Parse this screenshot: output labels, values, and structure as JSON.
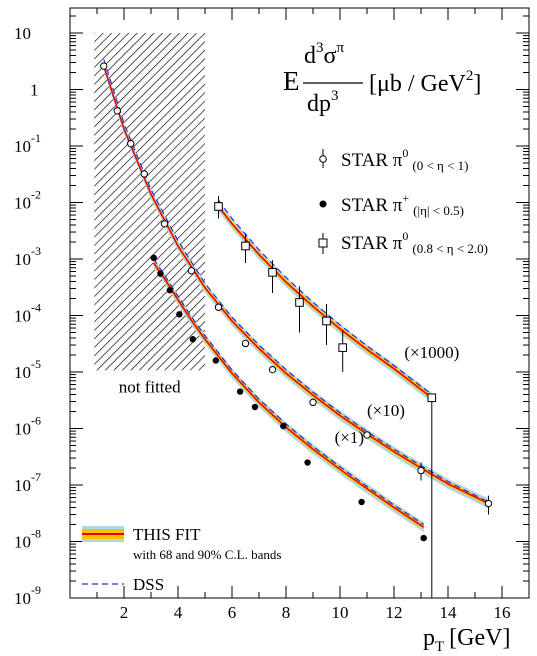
{
  "chart_data": {
    "type": "scatter",
    "xlabel": "p",
    "xlabel_sub": "T",
    "xlabel_unit": "[GeV]",
    "ylabel_formula": {
      "prefix": "E",
      "num_d": "d",
      "num_exp": "3",
      "num_sigma": "σ",
      "num_sup": "π",
      "den": "dp",
      "den_exp": "3",
      "unit": "[μb / GeV",
      "unit_exp": "2",
      "unit_close": "]"
    },
    "xlim": [
      0,
      17
    ],
    "ylog": true,
    "ylim_exp": [
      -9,
      1
    ],
    "x_ticks": [
      2,
      4,
      6,
      8,
      10,
      12,
      14,
      16
    ],
    "y_ticks": [
      {
        "exp": 1,
        "label": "10"
      },
      {
        "exp": 0,
        "label": "1"
      },
      {
        "exp": -1,
        "base": "10",
        "sup": "-1"
      },
      {
        "exp": -2,
        "base": "10",
        "sup": "-2"
      },
      {
        "exp": -3,
        "base": "10",
        "sup": "-3"
      },
      {
        "exp": -4,
        "base": "10",
        "sup": "-4"
      },
      {
        "exp": -5,
        "base": "10",
        "sup": "-5"
      },
      {
        "exp": -6,
        "base": "10",
        "sup": "-6"
      },
      {
        "exp": -7,
        "base": "10",
        "sup": "-7"
      },
      {
        "exp": -8,
        "base": "10",
        "sup": "-8"
      },
      {
        "exp": -9,
        "base": "10",
        "sup": "-9"
      }
    ],
    "not_fitted_region": {
      "x": [
        0.9,
        5.0
      ],
      "y_exp": [
        -4.97,
        1
      ]
    },
    "not_fitted_label": "not fitted",
    "colors": {
      "fit_line": "#e60000",
      "band_90": "#aad8e6",
      "band_68": "#ffc000",
      "dss": "#2a2ad8"
    },
    "series": [
      {
        "name": "STAR π⁰",
        "name_base": "STAR π",
        "name_sup": "0",
        "name_range": "(0 < η < 1)",
        "marker": "open-circle",
        "scale_label": "(×10)",
        "points": [
          {
            "x": 1.25,
            "y": 2.6
          },
          {
            "x": 1.75,
            "y": 0.42
          },
          {
            "x": 2.25,
            "y": 0.11
          },
          {
            "x": 2.75,
            "y": 0.032
          },
          {
            "x": 3.5,
            "y": 0.0042
          },
          {
            "x": 4.5,
            "y": 0.00062
          },
          {
            "x": 5.5,
            "y": 0.00014
          },
          {
            "x": 6.5,
            "y": 3.2e-05
          },
          {
            "x": 7.5,
            "y": 1.1e-05
          },
          {
            "x": 9.0,
            "y": 2.9e-06
          },
          {
            "x": 11.0,
            "y": 7.7e-07
          },
          {
            "x": 13.0,
            "y": 1.8e-07,
            "err_lo": 1.2e-07,
            "err_hi": 2.5e-07
          },
          {
            "x": 15.5,
            "y": 4.7e-08,
            "err_lo": 3e-08,
            "err_hi": 6.5e-08
          }
        ],
        "fit": {
          "x": [
            1.25,
            2,
            3,
            4,
            5,
            6,
            7,
            8,
            9,
            10,
            11,
            12,
            13,
            14,
            15.5
          ],
          "y": [
            2.6,
            0.2,
            0.014,
            0.0017,
            0.00031,
            8e-05,
            2.6e-05,
            9.5e-06,
            3.9e-06,
            1.7e-06,
            8e-07,
            3.9e-07,
            2e-07,
            1.05e-07,
            4.7e-08
          ]
        },
        "dss": {
          "x": [
            1.25,
            2,
            3,
            4,
            5,
            6,
            7,
            8,
            9,
            10,
            11,
            12,
            13,
            14,
            15.5
          ],
          "y": [
            3.4,
            0.25,
            0.017,
            0.0021,
            0.00037,
            9.3e-05,
            3e-05,
            1.1e-05,
            4.4e-06,
            1.9e-06,
            8.8e-07,
            4.3e-07,
            2.2e-07,
            1.15e-07,
            5e-08
          ]
        }
      },
      {
        "name": "STAR π⁺",
        "name_base": "STAR π",
        "name_sup": "+",
        "name_range": "(|η| < 0.5)",
        "marker": "filled-circle",
        "scale_label": "(×1)",
        "points": [
          {
            "x": 3.1,
            "y": 0.00105
          },
          {
            "x": 3.35,
            "y": 0.00055
          },
          {
            "x": 3.7,
            "y": 0.00028
          },
          {
            "x": 4.05,
            "y": 0.000105
          },
          {
            "x": 4.55,
            "y": 3.8e-05
          },
          {
            "x": 5.4,
            "y": 1.6e-05
          },
          {
            "x": 6.3,
            "y": 4.5e-06
          },
          {
            "x": 6.85,
            "y": 2.4e-06
          },
          {
            "x": 7.9,
            "y": 1.1e-06
          },
          {
            "x": 8.8,
            "y": 2.5e-07
          },
          {
            "x": 10.8,
            "y": 5e-08
          },
          {
            "x": 13.1,
            "y": 1.15e-08
          }
        ],
        "fit": {
          "x": [
            3.1,
            3.5,
            4,
            4.5,
            5,
            6,
            7,
            8,
            9,
            10,
            11,
            12,
            13.1
          ],
          "y": [
            0.00085,
            0.00045,
            0.00019,
            8.2e-05,
            3.8e-05,
            9.5e-06,
            2.9e-06,
            1.05e-06,
            4.3e-07,
            1.9e-07,
            8.6e-08,
            4e-08,
            1.8e-08
          ]
        },
        "dss": {
          "x": [
            3.1,
            3.5,
            4,
            4.5,
            5,
            6,
            7,
            8,
            9,
            10,
            11,
            12,
            13.1
          ],
          "y": [
            0.001,
            0.00052,
            0.00022,
            9.5e-05,
            4.4e-05,
            1.08e-05,
            3.3e-06,
            1.2e-06,
            4.8e-07,
            2.1e-07,
            9.4e-08,
            4.4e-08,
            2e-08
          ]
        }
      },
      {
        "name": "STAR π⁰",
        "name_base": "STAR π",
        "name_sup": "0",
        "name_range": "(0.8 < η < 2.0)",
        "marker": "open-square",
        "scale_label": "(×1000)",
        "points": [
          {
            "x": 5.5,
            "y": 0.0085,
            "err_lo": 0.0052,
            "err_hi": 0.013
          },
          {
            "x": 6.5,
            "y": 0.0017,
            "err_lo": 0.00085,
            "err_hi": 0.0028
          },
          {
            "x": 7.5,
            "y": 0.00058,
            "err_lo": 0.00025,
            "err_hi": 0.00095
          },
          {
            "x": 8.5,
            "y": 0.00017,
            "err_lo": 5e-05,
            "err_hi": 0.00033
          },
          {
            "x": 9.5,
            "y": 8e-05,
            "err_lo": 3e-05,
            "err_hi": 0.00016
          },
          {
            "x": 10.1,
            "y": 2.7e-05,
            "err_lo": 1e-05,
            "err_hi": 5.5e-05
          },
          {
            "x": 13.4,
            "y": 3.5e-06,
            "err_lo": 1e-09,
            "err_hi": 3.6e-06
          }
        ],
        "fit": {
          "x": [
            5.5,
            6,
            7,
            8,
            9,
            10,
            11,
            12,
            13.4
          ],
          "y": [
            0.0085,
            0.0042,
            0.0012,
            0.00039,
            0.000145,
            5.8e-05,
            2.5e-05,
            1.15e-05,
            3.5e-06
          ]
        },
        "dss": {
          "x": [
            5.5,
            6,
            7,
            8,
            9,
            10,
            11,
            12,
            13.4
          ],
          "y": [
            0.011,
            0.0052,
            0.00145,
            0.00047,
            0.000172,
            6.8e-05,
            2.9e-05,
            1.3e-05,
            4e-06
          ]
        }
      }
    ],
    "legend": {
      "placement": "bottom-left",
      "fit_label": "THIS FIT",
      "fit_sublabel": "with 68 and 90% C.L. bands",
      "dss_label": "DSS"
    }
  }
}
